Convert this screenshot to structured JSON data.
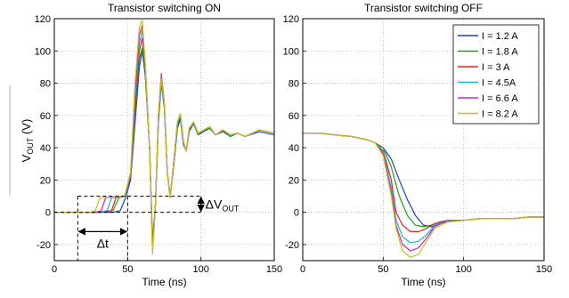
{
  "chart_data": [
    {
      "type": "line",
      "title": "Transistor switching ON",
      "xlabel": "Time (ns)",
      "ylabel": "V",
      "ylabel_sub": "OUT",
      "ylabel_unit": "(V)",
      "xlim": [
        0,
        150
      ],
      "ylim": [
        -30,
        120
      ],
      "xticks": [
        0,
        50,
        100,
        150
      ],
      "yticks": [
        -20,
        0,
        20,
        40,
        60,
        80,
        100,
        120
      ],
      "grid": true,
      "series": [
        {
          "color": "#1f3fbf",
          "x": [
            0,
            16,
            20,
            30,
            40,
            45,
            49,
            52,
            55,
            58,
            60,
            62,
            65,
            67,
            69,
            71,
            73,
            75,
            77,
            79,
            81,
            84,
            86,
            88,
            90,
            92,
            95,
            98,
            102,
            106,
            110,
            115,
            120,
            125,
            130,
            140,
            150
          ],
          "y": [
            0,
            0,
            0,
            0,
            0,
            1,
            10,
            20,
            55,
            90,
            100,
            85,
            40,
            -18,
            5,
            55,
            80,
            65,
            25,
            10,
            25,
            52,
            58,
            42,
            38,
            50,
            55,
            48,
            50,
            52,
            48,
            50,
            47,
            49,
            47,
            50,
            48
          ]
        },
        {
          "color": "#1f9f1f",
          "x": [
            0,
            16,
            20,
            30,
            40,
            44,
            48,
            52,
            55,
            58,
            60,
            62,
            65,
            67,
            69,
            71,
            73,
            75,
            77,
            79,
            81,
            84,
            86,
            88,
            90,
            92,
            95,
            98,
            102,
            106,
            110,
            115,
            120,
            125,
            130,
            140,
            150
          ],
          "y": [
            0,
            0,
            0,
            0,
            1,
            9,
            10,
            22,
            60,
            95,
            102,
            88,
            40,
            -20,
            5,
            57,
            82,
            66,
            25,
            10,
            26,
            54,
            60,
            43,
            38,
            51,
            56,
            48,
            51,
            52,
            48,
            51,
            47,
            49,
            47,
            51,
            49
          ]
        },
        {
          "color": "#e02020",
          "x": [
            0,
            16,
            20,
            30,
            39,
            42,
            48,
            52,
            55,
            58,
            60,
            62,
            65,
            67,
            69,
            71,
            73,
            75,
            77,
            79,
            81,
            84,
            86,
            88,
            90,
            92,
            95,
            98,
            102,
            106,
            110,
            115,
            120,
            125,
            130,
            140,
            150
          ],
          "y": [
            0,
            0,
            0,
            0,
            1,
            9,
            10,
            22,
            65,
            100,
            108,
            90,
            40,
            -22,
            5,
            60,
            86,
            68,
            25,
            9,
            27,
            56,
            61,
            44,
            38,
            52,
            56,
            49,
            51,
            53,
            48,
            51,
            48,
            49,
            47,
            51,
            49
          ]
        },
        {
          "color": "#10b8c8",
          "x": [
            0,
            16,
            20,
            30,
            36,
            39,
            48,
            52,
            55,
            58,
            60,
            62,
            65,
            67,
            69,
            71,
            73,
            75,
            77,
            79,
            81,
            84,
            86,
            88,
            90,
            92,
            95,
            98,
            102,
            106,
            110,
            115,
            120,
            125,
            130,
            140,
            150
          ],
          "y": [
            0,
            0,
            0,
            0,
            1,
            9,
            10,
            23,
            70,
            105,
            113,
            92,
            40,
            -24,
            5,
            60,
            85,
            68,
            25,
            9,
            27,
            56,
            61,
            44,
            38,
            52,
            56,
            49,
            51,
            53,
            48,
            51,
            48,
            49,
            47,
            51,
            49
          ]
        },
        {
          "color": "#d020d0",
          "x": [
            0,
            16,
            20,
            28,
            32,
            35,
            48,
            52,
            55,
            58,
            60,
            62,
            65,
            67,
            69,
            71,
            73,
            75,
            77,
            79,
            81,
            84,
            86,
            88,
            90,
            92,
            95,
            98,
            102,
            106,
            110,
            115,
            120,
            125,
            130,
            140,
            150
          ],
          "y": [
            0,
            0,
            0,
            0,
            1,
            9,
            10,
            24,
            75,
            110,
            116,
            92,
            40,
            -25,
            5,
            60,
            84,
            68,
            25,
            9,
            27,
            56,
            61,
            44,
            38,
            52,
            56,
            49,
            51,
            53,
            48,
            51,
            48,
            49,
            47,
            51,
            49
          ]
        },
        {
          "color": "#c8c020",
          "x": [
            0,
            16,
            20,
            24,
            28,
            31,
            48,
            52,
            55,
            58,
            60,
            62,
            65,
            67,
            69,
            71,
            73,
            75,
            77,
            79,
            81,
            84,
            86,
            88,
            90,
            92,
            95,
            98,
            102,
            106,
            110,
            115,
            120,
            125,
            130,
            140,
            150
          ],
          "y": [
            0,
            0,
            0,
            0,
            1,
            9,
            10,
            25,
            80,
            115,
            119,
            92,
            40,
            -26,
            5,
            60,
            83,
            68,
            25,
            9,
            27,
            56,
            61,
            44,
            38,
            52,
            56,
            49,
            51,
            53,
            48,
            51,
            48,
            49,
            47,
            51,
            49
          ]
        }
      ],
      "annotations": {
        "delta_t": "Δt",
        "delta_v": "ΔV",
        "delta_v_sub": "OUT"
      }
    },
    {
      "type": "line",
      "title": "Transistor switching OFF",
      "xlabel": "Time (ns)",
      "xlim": [
        0,
        150
      ],
      "ylim": [
        -30,
        120
      ],
      "xticks": [
        0,
        50,
        100,
        150
      ],
      "yticks": [
        -20,
        0,
        20,
        40,
        60,
        80,
        100,
        120
      ],
      "grid": true,
      "legend_position": "top-right",
      "series": [
        {
          "name": "I = 1.2 A",
          "color": "#1f3fbf",
          "x": [
            0,
            10,
            20,
            30,
            40,
            45,
            50,
            55,
            60,
            65,
            70,
            75,
            80,
            85,
            90,
            100,
            110,
            120,
            130,
            140,
            150
          ],
          "y": [
            49,
            49,
            48,
            47,
            45,
            43,
            40,
            33,
            20,
            8,
            -2,
            -8,
            -9,
            -7,
            -6,
            -5,
            -4,
            -4,
            -4,
            -3,
            -3
          ]
        },
        {
          "name": "I = 1.8 A",
          "color": "#1f9f1f",
          "x": [
            0,
            10,
            20,
            30,
            40,
            45,
            50,
            55,
            60,
            65,
            70,
            75,
            80,
            85,
            90,
            100,
            110,
            120,
            130,
            140,
            150
          ],
          "y": [
            49,
            49,
            48,
            47,
            45,
            43,
            40,
            28,
            10,
            -2,
            -8,
            -9,
            -8,
            -6,
            -5,
            -5,
            -4,
            -4,
            -4,
            -3,
            -3
          ]
        },
        {
          "name": "I = 3 A",
          "color": "#e02020",
          "x": [
            0,
            10,
            20,
            30,
            40,
            45,
            50,
            55,
            58,
            62,
            67,
            72,
            77,
            82,
            90,
            100,
            110,
            120,
            130,
            140,
            150
          ],
          "y": [
            49,
            49,
            48,
            47,
            45,
            43,
            38,
            20,
            0,
            -8,
            -12,
            -12,
            -10,
            -7,
            -5,
            -5,
            -4,
            -4,
            -4,
            -3,
            -3
          ]
        },
        {
          "name": "I = 4.5A",
          "color": "#10b8c8",
          "x": [
            0,
            10,
            20,
            30,
            40,
            45,
            50,
            55,
            58,
            62,
            67,
            72,
            77,
            82,
            90,
            100,
            110,
            120,
            130,
            140,
            150
          ],
          "y": [
            49,
            49,
            48,
            47,
            45,
            43,
            37,
            15,
            -5,
            -15,
            -19,
            -18,
            -14,
            -8,
            -5,
            -5,
            -4,
            -4,
            -4,
            -3,
            -3
          ]
        },
        {
          "name": "I = 6.6 A",
          "color": "#d020d0",
          "x": [
            0,
            10,
            20,
            30,
            40,
            45,
            50,
            55,
            58,
            62,
            67,
            72,
            77,
            82,
            90,
            100,
            110,
            120,
            130,
            140,
            150
          ],
          "y": [
            49,
            49,
            48,
            47,
            45,
            43,
            36,
            12,
            -8,
            -20,
            -24,
            -22,
            -16,
            -9,
            -5,
            -5,
            -4,
            -4,
            -4,
            -3,
            -3
          ]
        },
        {
          "name": "I = 8.2 A",
          "color": "#c8c020",
          "x": [
            0,
            10,
            20,
            30,
            40,
            45,
            50,
            55,
            58,
            62,
            67,
            72,
            77,
            82,
            90,
            100,
            110,
            120,
            130,
            140,
            150
          ],
          "y": [
            49,
            49,
            48,
            47,
            45,
            43,
            35,
            10,
            -10,
            -24,
            -28,
            -26,
            -18,
            -10,
            -6,
            -5,
            -4,
            -4,
            -4,
            -3,
            -3
          ]
        }
      ]
    }
  ]
}
